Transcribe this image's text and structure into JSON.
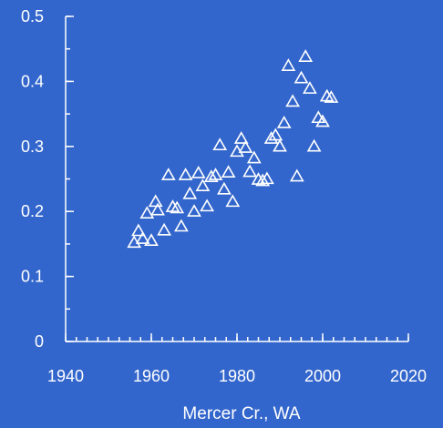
{
  "chart_data": {
    "type": "scatter",
    "title": "",
    "xlabel": "Mercer Cr., WA",
    "ylabel": "",
    "xlim": [
      1940,
      2020
    ],
    "ylim": [
      0,
      0.5
    ],
    "x_ticks": [
      1940,
      1960,
      1980,
      2000,
      2020
    ],
    "x_tick_labels": [
      "1940",
      "1960",
      "1980",
      "2000",
      "2020"
    ],
    "x_minor_step": 2.5,
    "y_ticks": [
      0,
      0.1,
      0.2,
      0.3,
      0.4,
      0.5
    ],
    "y_tick_labels": [
      "0",
      "0.1",
      "0.2",
      "0.3",
      "0.4",
      "0.5"
    ],
    "y_minor_step": 0.05,
    "grid": false,
    "legend": "none",
    "colors": {
      "background": "#3366cc",
      "axes": "#ffffff",
      "marker": "#ffffff",
      "text": "#ffffff"
    },
    "marker_shape": "open-triangle",
    "series": [
      {
        "points": [
          [
            1956,
            0.152
          ],
          [
            1957,
            0.17
          ],
          [
            1958,
            0.158
          ],
          [
            1959,
            0.197
          ],
          [
            1960,
            0.155
          ],
          [
            1961,
            0.215
          ],
          [
            1961.5,
            0.202
          ],
          [
            1963,
            0.171
          ],
          [
            1964,
            0.256
          ],
          [
            1965,
            0.207
          ],
          [
            1966,
            0.205
          ],
          [
            1967,
            0.177
          ],
          [
            1968,
            0.256
          ],
          [
            1969,
            0.227
          ],
          [
            1970,
            0.2
          ],
          [
            1971,
            0.259
          ],
          [
            1972,
            0.239
          ],
          [
            1973,
            0.208
          ],
          [
            1974,
            0.253
          ],
          [
            1975,
            0.256
          ],
          [
            1976,
            0.302
          ],
          [
            1977,
            0.234
          ],
          [
            1978,
            0.26
          ],
          [
            1979,
            0.215
          ],
          [
            1980,
            0.292
          ],
          [
            1981,
            0.312
          ],
          [
            1982,
            0.298
          ],
          [
            1983,
            0.261
          ],
          [
            1984,
            0.282
          ],
          [
            1985,
            0.249
          ],
          [
            1986,
            0.247
          ],
          [
            1987,
            0.25
          ],
          [
            1988,
            0.312
          ],
          [
            1989,
            0.317
          ],
          [
            1990,
            0.3
          ],
          [
            1991,
            0.336
          ],
          [
            1992,
            0.424
          ],
          [
            1993,
            0.369
          ],
          [
            1994,
            0.254
          ],
          [
            1995,
            0.405
          ],
          [
            1996,
            0.438
          ],
          [
            1997,
            0.389
          ],
          [
            1998,
            0.3
          ],
          [
            1999,
            0.344
          ],
          [
            2000,
            0.338
          ],
          [
            2001,
            0.377
          ],
          [
            2002,
            0.375
          ]
        ]
      }
    ]
  }
}
